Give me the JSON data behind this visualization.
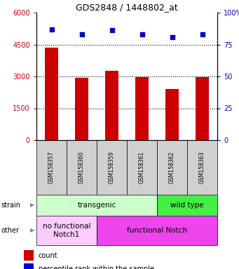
{
  "title": "GDS2848 / 1448802_at",
  "samples": [
    "GSM158357",
    "GSM158360",
    "GSM158359",
    "GSM158361",
    "GSM158362",
    "GSM158363"
  ],
  "counts": [
    4350,
    2950,
    3250,
    2960,
    2400,
    2960
  ],
  "percentiles": [
    87,
    83,
    86,
    83,
    81,
    83
  ],
  "ylim_left": [
    0,
    6000
  ],
  "ylim_right": [
    0,
    100
  ],
  "yticks_left": [
    0,
    1500,
    3000,
    4500,
    6000
  ],
  "ytick_labels_left": [
    "0",
    "1500",
    "3000",
    "4500",
    "6000"
  ],
  "yticks_right": [
    0,
    25,
    50,
    75,
    100
  ],
  "ytick_labels_right": [
    "0",
    "25",
    "50",
    "75",
    "100%"
  ],
  "bar_color": "#cc0000",
  "dot_color": "#0000cc",
  "left_tick_color": "#cc0000",
  "right_tick_color": "#0000cc",
  "strain_groups": [
    {
      "label": "transgenic",
      "span": [
        0,
        4
      ],
      "color": "#ccffcc"
    },
    {
      "label": "wild type",
      "span": [
        4,
        6
      ],
      "color": "#44ee44"
    }
  ],
  "other_groups": [
    {
      "label": "no functional\nNotch1",
      "span": [
        0,
        2
      ],
      "color": "#ffccff"
    },
    {
      "label": "functional Notch",
      "span": [
        2,
        6
      ],
      "color": "#ee44ee"
    }
  ],
  "legend_count_label": "count",
  "legend_pct_label": "percentile rank within the sample",
  "bar_width": 0.45,
  "sample_box_color": "#d0d0d0",
  "grid_color": "#000000"
}
